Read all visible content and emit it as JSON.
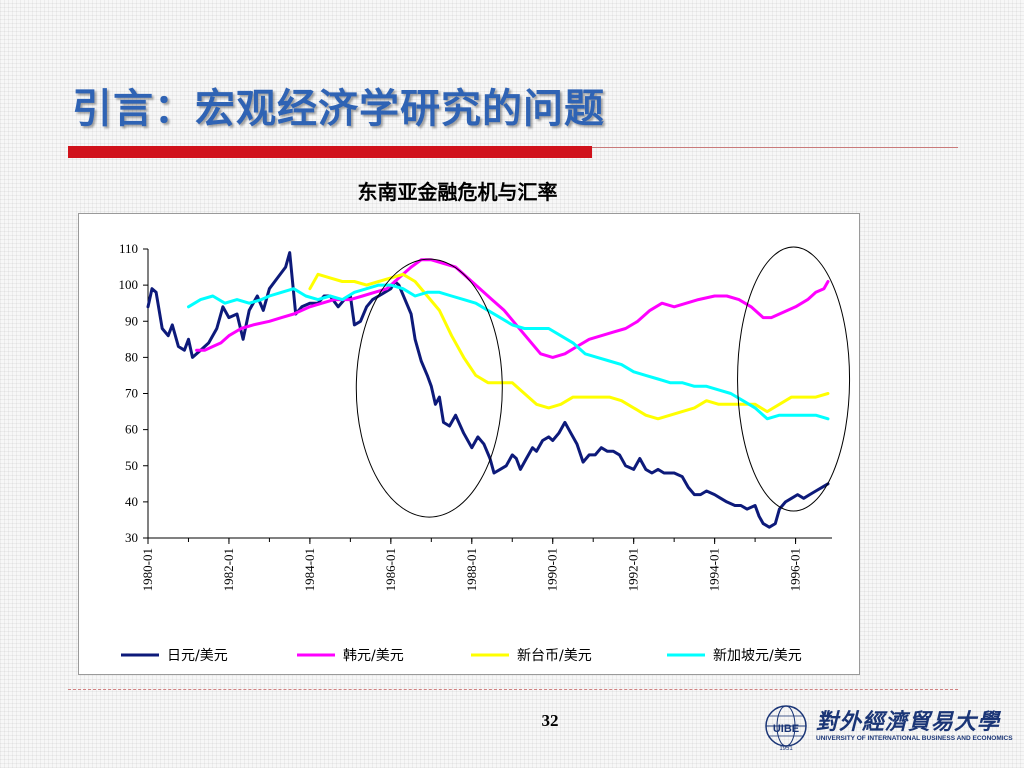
{
  "slide": {
    "title": "引言：宏观经济学研究的问题",
    "page_number": "32"
  },
  "logo": {
    "name_cn": "對外經濟貿易大學",
    "name_en": "UNIVERSITY OF INTERNATIONAL BUSINESS AND ECONOMICS",
    "emblem_text": "UIBE",
    "year": "1951"
  },
  "colors": {
    "title": "#2f63b4",
    "accent_red": "#d0121b",
    "jpy": "#0d1a7a",
    "krw": "#ff00ff",
    "twd": "#ffff00",
    "sgd": "#00ffff"
  },
  "chart_data": {
    "type": "line",
    "title": "东南亚金融危机与汇率",
    "xlabel": "",
    "ylabel": "",
    "ylim": [
      30,
      110
    ],
    "xlim": [
      1980.0,
      1996.9
    ],
    "yticks": [
      110,
      100,
      90,
      80,
      70,
      60,
      50,
      40,
      30
    ],
    "xticks": [
      "1980-01",
      "1982-01",
      "1984-01",
      "1986-01",
      "1988-01",
      "1990-01",
      "1992-01",
      "1994-01",
      "1996-01"
    ],
    "grid": false,
    "legend_position": "bottom",
    "annotations": [
      "ellipse around 1986–1988",
      "ellipse around 1995–1996"
    ],
    "series": [
      {
        "name": "日元/美元",
        "color": "#0d1a7a",
        "points": [
          [
            1980.0,
            94
          ],
          [
            1980.1,
            99
          ],
          [
            1980.2,
            98
          ],
          [
            1980.35,
            88
          ],
          [
            1980.5,
            86
          ],
          [
            1980.6,
            89
          ],
          [
            1980.75,
            83
          ],
          [
            1980.9,
            82
          ],
          [
            1981.0,
            85
          ],
          [
            1981.1,
            80
          ],
          [
            1981.3,
            82
          ],
          [
            1981.5,
            84
          ],
          [
            1981.7,
            88
          ],
          [
            1981.85,
            94
          ],
          [
            1982.0,
            91
          ],
          [
            1982.2,
            92
          ],
          [
            1982.35,
            85
          ],
          [
            1982.5,
            93
          ],
          [
            1982.7,
            97
          ],
          [
            1982.85,
            93
          ],
          [
            1983.0,
            99
          ],
          [
            1983.2,
            102
          ],
          [
            1983.4,
            105
          ],
          [
            1983.5,
            109
          ],
          [
            1983.65,
            92
          ],
          [
            1983.8,
            94
          ],
          [
            1984.0,
            95
          ],
          [
            1984.2,
            95
          ],
          [
            1984.35,
            97
          ],
          [
            1984.5,
            97
          ],
          [
            1984.7,
            94
          ],
          [
            1984.85,
            96
          ],
          [
            1985.0,
            97
          ],
          [
            1985.1,
            89
          ],
          [
            1985.25,
            90
          ],
          [
            1985.4,
            94
          ],
          [
            1985.55,
            96
          ],
          [
            1985.7,
            97
          ],
          [
            1986.0,
            99
          ],
          [
            1986.1,
            101
          ],
          [
            1986.2,
            100
          ],
          [
            1986.35,
            96
          ],
          [
            1986.5,
            92
          ],
          [
            1986.6,
            85
          ],
          [
            1986.75,
            79
          ],
          [
            1986.9,
            75
          ],
          [
            1987.0,
            72
          ],
          [
            1987.1,
            67
          ],
          [
            1987.2,
            69
          ],
          [
            1987.3,
            62
          ],
          [
            1987.45,
            61
          ],
          [
            1987.6,
            64
          ],
          [
            1987.8,
            59
          ],
          [
            1988.0,
            55
          ],
          [
            1988.15,
            58
          ],
          [
            1988.3,
            56
          ],
          [
            1988.45,
            52
          ],
          [
            1988.55,
            48
          ],
          [
            1988.7,
            49
          ],
          [
            1988.85,
            50
          ],
          [
            1989.0,
            53
          ],
          [
            1989.1,
            52
          ],
          [
            1989.2,
            49
          ],
          [
            1989.35,
            52
          ],
          [
            1989.5,
            55
          ],
          [
            1989.6,
            54
          ],
          [
            1989.75,
            57
          ],
          [
            1989.9,
            58
          ],
          [
            1990.0,
            57
          ],
          [
            1990.15,
            59
          ],
          [
            1990.3,
            62
          ],
          [
            1990.45,
            59
          ],
          [
            1990.6,
            56
          ],
          [
            1990.75,
            51
          ],
          [
            1990.9,
            53
          ],
          [
            1991.05,
            53
          ],
          [
            1991.2,
            55
          ],
          [
            1991.35,
            54
          ],
          [
            1991.5,
            54
          ],
          [
            1991.65,
            53
          ],
          [
            1991.8,
            50
          ],
          [
            1992.0,
            49
          ],
          [
            1992.15,
            52
          ],
          [
            1992.3,
            49
          ],
          [
            1992.45,
            48
          ],
          [
            1992.6,
            49
          ],
          [
            1992.75,
            48
          ],
          [
            1993.0,
            48
          ],
          [
            1993.2,
            47
          ],
          [
            1993.35,
            44
          ],
          [
            1993.5,
            42
          ],
          [
            1993.65,
            42
          ],
          [
            1993.8,
            43
          ],
          [
            1994.0,
            42
          ],
          [
            1994.15,
            41
          ],
          [
            1994.3,
            40
          ],
          [
            1994.5,
            39
          ],
          [
            1994.65,
            39
          ],
          [
            1994.8,
            38
          ],
          [
            1995.0,
            39
          ],
          [
            1995.1,
            36
          ],
          [
            1995.2,
            34
          ],
          [
            1995.35,
            33
          ],
          [
            1995.5,
            34
          ],
          [
            1995.6,
            38
          ],
          [
            1995.75,
            40
          ],
          [
            1995.9,
            41
          ],
          [
            1996.05,
            42
          ],
          [
            1996.2,
            41
          ],
          [
            1996.35,
            42
          ],
          [
            1996.5,
            43
          ],
          [
            1996.65,
            44
          ],
          [
            1996.8,
            45
          ]
        ]
      },
      {
        "name": "韩元/美元",
        "color": "#ff00ff",
        "points": [
          [
            1981.2,
            82
          ],
          [
            1981.4,
            82
          ],
          [
            1981.6,
            83
          ],
          [
            1981.8,
            84
          ],
          [
            1982.0,
            86
          ],
          [
            1982.3,
            88
          ],
          [
            1982.6,
            89
          ],
          [
            1983.0,
            90
          ],
          [
            1983.3,
            91
          ],
          [
            1983.6,
            92
          ],
          [
            1984.0,
            94
          ],
          [
            1984.3,
            95
          ],
          [
            1984.6,
            96
          ],
          [
            1985.0,
            96
          ],
          [
            1985.3,
            97
          ],
          [
            1985.6,
            98
          ],
          [
            1985.9,
            99
          ],
          [
            1986.2,
            102
          ],
          [
            1986.5,
            105
          ],
          [
            1986.75,
            107
          ],
          [
            1987.0,
            107
          ],
          [
            1987.3,
            106
          ],
          [
            1987.6,
            105
          ],
          [
            1987.9,
            102
          ],
          [
            1988.2,
            99
          ],
          [
            1988.5,
            96
          ],
          [
            1988.8,
            93
          ],
          [
            1989.1,
            89
          ],
          [
            1989.4,
            85
          ],
          [
            1989.7,
            81
          ],
          [
            1990.0,
            80
          ],
          [
            1990.3,
            81
          ],
          [
            1990.6,
            83
          ],
          [
            1990.9,
            85
          ],
          [
            1991.2,
            86
          ],
          [
            1991.5,
            87
          ],
          [
            1991.8,
            88
          ],
          [
            1992.1,
            90
          ],
          [
            1992.4,
            93
          ],
          [
            1992.7,
            95
          ],
          [
            1993.0,
            94
          ],
          [
            1993.3,
            95
          ],
          [
            1993.6,
            96
          ],
          [
            1994.0,
            97
          ],
          [
            1994.3,
            97
          ],
          [
            1994.6,
            96
          ],
          [
            1994.9,
            94
          ],
          [
            1995.2,
            91
          ],
          [
            1995.4,
            91
          ],
          [
            1995.6,
            92
          ],
          [
            1995.8,
            93
          ],
          [
            1996.0,
            94
          ],
          [
            1996.3,
            96
          ],
          [
            1996.5,
            98
          ],
          [
            1996.7,
            99
          ],
          [
            1996.8,
            101
          ]
        ]
      },
      {
        "name": "新台币/美元",
        "color": "#ffff00",
        "points": [
          [
            1984.0,
            99
          ],
          [
            1984.2,
            103
          ],
          [
            1984.5,
            102
          ],
          [
            1984.8,
            101
          ],
          [
            1985.1,
            101
          ],
          [
            1985.4,
            100
          ],
          [
            1985.7,
            101
          ],
          [
            1986.0,
            102
          ],
          [
            1986.3,
            103
          ],
          [
            1986.6,
            101
          ],
          [
            1986.9,
            97
          ],
          [
            1987.2,
            93
          ],
          [
            1987.5,
            86
          ],
          [
            1987.8,
            80
          ],
          [
            1988.1,
            75
          ],
          [
            1988.4,
            73
          ],
          [
            1988.7,
            73
          ],
          [
            1989.0,
            73
          ],
          [
            1989.3,
            70
          ],
          [
            1989.6,
            67
          ],
          [
            1989.9,
            66
          ],
          [
            1990.2,
            67
          ],
          [
            1990.5,
            69
          ],
          [
            1990.8,
            69
          ],
          [
            1991.1,
            69
          ],
          [
            1991.4,
            69
          ],
          [
            1991.7,
            68
          ],
          [
            1992.0,
            66
          ],
          [
            1992.3,
            64
          ],
          [
            1992.6,
            63
          ],
          [
            1992.9,
            64
          ],
          [
            1993.2,
            65
          ],
          [
            1993.5,
            66
          ],
          [
            1993.8,
            68
          ],
          [
            1994.1,
            67
          ],
          [
            1994.4,
            67
          ],
          [
            1994.7,
            67
          ],
          [
            1995.0,
            67
          ],
          [
            1995.3,
            65
          ],
          [
            1995.6,
            67
          ],
          [
            1995.9,
            69
          ],
          [
            1996.2,
            69
          ],
          [
            1996.5,
            69
          ],
          [
            1996.8,
            70
          ]
        ]
      },
      {
        "name": "新加坡元/美元",
        "color": "#00ffff",
        "points": [
          [
            1981.0,
            94
          ],
          [
            1981.3,
            96
          ],
          [
            1981.6,
            97
          ],
          [
            1981.9,
            95
          ],
          [
            1982.2,
            96
          ],
          [
            1982.5,
            95
          ],
          [
            1982.8,
            96
          ],
          [
            1983.0,
            97
          ],
          [
            1983.3,
            98
          ],
          [
            1983.6,
            99
          ],
          [
            1983.9,
            97
          ],
          [
            1984.2,
            96
          ],
          [
            1984.5,
            97
          ],
          [
            1984.8,
            96
          ],
          [
            1985.1,
            98
          ],
          [
            1985.4,
            99
          ],
          [
            1985.7,
            100
          ],
          [
            1986.0,
            100
          ],
          [
            1986.3,
            99
          ],
          [
            1986.6,
            97
          ],
          [
            1986.9,
            98
          ],
          [
            1987.2,
            98
          ],
          [
            1987.5,
            97
          ],
          [
            1987.8,
            96
          ],
          [
            1988.1,
            95
          ],
          [
            1988.4,
            93
          ],
          [
            1988.7,
            91
          ],
          [
            1989.0,
            89
          ],
          [
            1989.3,
            88
          ],
          [
            1989.6,
            88
          ],
          [
            1989.9,
            88
          ],
          [
            1990.2,
            86
          ],
          [
            1990.5,
            84
          ],
          [
            1990.8,
            81
          ],
          [
            1991.1,
            80
          ],
          [
            1991.4,
            79
          ],
          [
            1991.7,
            78
          ],
          [
            1992.0,
            76
          ],
          [
            1992.3,
            75
          ],
          [
            1992.6,
            74
          ],
          [
            1992.9,
            73
          ],
          [
            1993.2,
            73
          ],
          [
            1993.5,
            72
          ],
          [
            1993.8,
            72
          ],
          [
            1994.1,
            71
          ],
          [
            1994.4,
            70
          ],
          [
            1994.7,
            68
          ],
          [
            1995.0,
            66
          ],
          [
            1995.3,
            63
          ],
          [
            1995.6,
            64
          ],
          [
            1995.9,
            64
          ],
          [
            1996.2,
            64
          ],
          [
            1996.5,
            64
          ],
          [
            1996.8,
            63
          ]
        ]
      }
    ]
  }
}
